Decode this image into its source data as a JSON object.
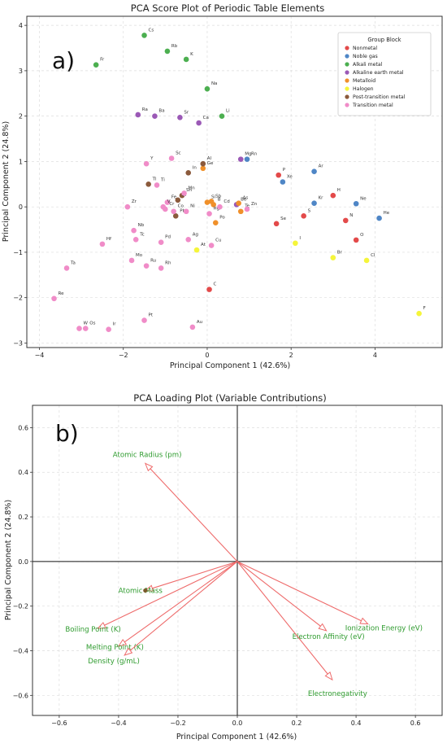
{
  "panel_labels": [
    "a)",
    "b)"
  ],
  "colors": {
    "Nonmetal": "#e34a4a",
    "Noble gas": "#4f86c6",
    "Alkali metal": "#4caf50",
    "Alkaline earth metal": "#9b59b6",
    "Metalloid": "#f0902a",
    "Halogen": "#f5f53a",
    "Post-transition metal": "#8b5a3c",
    "Transition metal": "#f08cc8",
    "loading_arrow": "#ee6b6b",
    "loading_label": "#2e9b2e"
  },
  "chart_data": [
    {
      "type": "scatter",
      "title": "PCA Score Plot of Periodic Table Elements",
      "xlabel": "Principal Component 1 (42.6%)",
      "ylabel": "Principal Component 2 (24.8%)",
      "xlim": [
        -4.3,
        5.6
      ],
      "ylim": [
        -3.1,
        4.2
      ],
      "xticks": [
        -4,
        -2,
        0,
        2,
        4
      ],
      "yticks": [
        -3,
        -2,
        -1,
        0,
        1,
        2,
        3,
        4
      ],
      "grid": true,
      "legend": {
        "title": "Group Block",
        "position": "top-right",
        "entries": [
          "Nonmetal",
          "Noble gas",
          "Alkali metal",
          "Alkaline earth metal",
          "Metalloid",
          "Halogen",
          "Post-transition metal",
          "Transition metal"
        ]
      },
      "points": [
        {
          "label": "Cs",
          "x": -1.5,
          "y": 3.78,
          "group": "Alkali metal"
        },
        {
          "label": "Rb",
          "x": -0.95,
          "y": 3.43,
          "group": "Alkali metal"
        },
        {
          "label": "K",
          "x": -0.5,
          "y": 3.25,
          "group": "Alkali metal"
        },
        {
          "label": "Fr",
          "x": -2.65,
          "y": 3.13,
          "group": "Alkali metal"
        },
        {
          "label": "Na",
          "x": 0.0,
          "y": 2.6,
          "group": "Alkali metal"
        },
        {
          "label": "Li",
          "x": 0.35,
          "y": 2.0,
          "group": "Alkali metal"
        },
        {
          "label": "Ra",
          "x": -1.65,
          "y": 2.03,
          "group": "Alkaline earth metal"
        },
        {
          "label": "Ba",
          "x": -1.25,
          "y": 2.0,
          "group": "Alkaline earth metal"
        },
        {
          "label": "Sr",
          "x": -0.65,
          "y": 1.97,
          "group": "Alkaline earth metal"
        },
        {
          "label": "Ca",
          "x": -0.2,
          "y": 1.85,
          "group": "Alkaline earth metal"
        },
        {
          "label": "Mg",
          "x": 0.8,
          "y": 1.05,
          "group": "Alkaline earth metal"
        },
        {
          "label": "Be",
          "x": 0.7,
          "y": 0.05,
          "group": "Alkaline earth metal"
        },
        {
          "label": "Rn",
          "x": 0.95,
          "y": 1.05,
          "group": "Noble gas"
        },
        {
          "label": "Xe",
          "x": 1.8,
          "y": 0.55,
          "group": "Noble gas"
        },
        {
          "label": "Ar",
          "x": 2.55,
          "y": 0.78,
          "group": "Noble gas"
        },
        {
          "label": "Kr",
          "x": 2.55,
          "y": 0.08,
          "group": "Noble gas"
        },
        {
          "label": "Ne",
          "x": 3.55,
          "y": 0.07,
          "group": "Noble gas"
        },
        {
          "label": "He",
          "x": 4.1,
          "y": -0.25,
          "group": "Noble gas"
        },
        {
          "label": "P",
          "x": 1.7,
          "y": 0.7,
          "group": "Nonmetal"
        },
        {
          "label": "H",
          "x": 3.0,
          "y": 0.25,
          "group": "Nonmetal"
        },
        {
          "label": "S",
          "x": 2.3,
          "y": -0.2,
          "group": "Nonmetal"
        },
        {
          "label": "Se",
          "x": 1.65,
          "y": -0.37,
          "group": "Nonmetal"
        },
        {
          "label": "N",
          "x": 3.3,
          "y": -0.3,
          "group": "Nonmetal"
        },
        {
          "label": "O",
          "x": 3.55,
          "y": -0.73,
          "group": "Nonmetal"
        },
        {
          "label": "C",
          "x": 0.05,
          "y": -1.82,
          "group": "Nonmetal"
        },
        {
          "label": "I",
          "x": 2.1,
          "y": -0.8,
          "group": "Halogen"
        },
        {
          "label": "Br",
          "x": 3.0,
          "y": -1.12,
          "group": "Halogen"
        },
        {
          "label": "Cl",
          "x": 3.8,
          "y": -1.18,
          "group": "Halogen"
        },
        {
          "label": "F",
          "x": 5.05,
          "y": -2.35,
          "group": "Halogen"
        },
        {
          "label": "At",
          "x": -0.25,
          "y": -0.95,
          "group": "Halogen"
        },
        {
          "label": "Ge",
          "x": -0.1,
          "y": 0.85,
          "group": "Metalloid"
        },
        {
          "label": "Si",
          "x": 0.0,
          "y": 0.1,
          "group": "Metalloid"
        },
        {
          "label": "Sb",
          "x": 0.1,
          "y": 0.12,
          "group": "Metalloid"
        },
        {
          "label": "B",
          "x": 0.15,
          "y": 0.05,
          "group": "Metalloid"
        },
        {
          "label": "As",
          "x": 0.75,
          "y": 0.08,
          "group": "Metalloid"
        },
        {
          "label": "Te",
          "x": 0.8,
          "y": -0.1,
          "group": "Metalloid"
        },
        {
          "label": "Po",
          "x": 0.2,
          "y": -0.35,
          "group": "Metalloid"
        },
        {
          "label": "Al",
          "x": -0.1,
          "y": 0.95,
          "group": "Post-transition metal"
        },
        {
          "label": "In",
          "x": -0.45,
          "y": 0.75,
          "group": "Post-transition metal"
        },
        {
          "label": "Tl",
          "x": -1.4,
          "y": 0.5,
          "group": "Post-transition metal"
        },
        {
          "label": "Sn",
          "x": -0.6,
          "y": 0.25,
          "group": "Post-transition metal"
        },
        {
          "label": "Bi",
          "x": -0.7,
          "y": 0.15,
          "group": "Post-transition metal"
        },
        {
          "label": "Pb",
          "x": -0.75,
          "y": -0.2,
          "group": "Post-transition metal"
        },
        {
          "label": "Y",
          "x": -1.45,
          "y": 0.95,
          "group": "Transition metal"
        },
        {
          "label": "Sc",
          "x": -0.85,
          "y": 1.07,
          "group": "Transition metal"
        },
        {
          "label": "Ti",
          "x": -1.2,
          "y": 0.48,
          "group": "Transition metal"
        },
        {
          "label": "Zr",
          "x": -1.9,
          "y": 0.0,
          "group": "Transition metal"
        },
        {
          "label": "Mn",
          "x": -0.55,
          "y": 0.3,
          "group": "Transition metal"
        },
        {
          "label": "Fe",
          "x": -0.95,
          "y": 0.1,
          "group": "Transition metal"
        },
        {
          "label": "V",
          "x": -1.05,
          "y": 0.0,
          "group": "Transition metal"
        },
        {
          "label": "Co",
          "x": -0.8,
          "y": -0.1,
          "group": "Transition metal"
        },
        {
          "label": "Ni",
          "x": -0.5,
          "y": -0.1,
          "group": "Transition metal"
        },
        {
          "label": "Cr",
          "x": -1.0,
          "y": -0.05,
          "group": "Transition metal"
        },
        {
          "label": "Hg",
          "x": 0.05,
          "y": -0.15,
          "group": "Transition metal"
        },
        {
          "label": "Cd",
          "x": 0.3,
          "y": 0.0,
          "group": "Transition metal"
        },
        {
          "label": "Zn",
          "x": 0.95,
          "y": -0.05,
          "group": "Transition metal"
        },
        {
          "label": "Nb",
          "x": -1.75,
          "y": -0.52,
          "group": "Transition metal"
        },
        {
          "label": "Tc",
          "x": -1.7,
          "y": -0.72,
          "group": "Transition metal"
        },
        {
          "label": "Hf",
          "x": -2.5,
          "y": -0.82,
          "group": "Transition metal"
        },
        {
          "label": "Pd",
          "x": -1.1,
          "y": -0.78,
          "group": "Transition metal"
        },
        {
          "label": "Ag",
          "x": -0.45,
          "y": -0.72,
          "group": "Transition metal"
        },
        {
          "label": "Cu",
          "x": 0.1,
          "y": -0.85,
          "group": "Transition metal"
        },
        {
          "label": "Mo",
          "x": -1.8,
          "y": -1.18,
          "group": "Transition metal"
        },
        {
          "label": "Ru",
          "x": -1.45,
          "y": -1.3,
          "group": "Transition metal"
        },
        {
          "label": "Rh",
          "x": -1.1,
          "y": -1.35,
          "group": "Transition metal"
        },
        {
          "label": "Ta",
          "x": -3.35,
          "y": -1.35,
          "group": "Transition metal"
        },
        {
          "label": "Re",
          "x": -3.65,
          "y": -2.02,
          "group": "Transition metal"
        },
        {
          "label": "Pt",
          "x": -1.5,
          "y": -2.5,
          "group": "Transition metal"
        },
        {
          "label": "Au",
          "x": -0.35,
          "y": -2.65,
          "group": "Transition metal"
        },
        {
          "label": "W",
          "x": -3.05,
          "y": -2.68,
          "group": "Transition metal"
        },
        {
          "label": "Os",
          "x": -2.9,
          "y": -2.68,
          "group": "Transition metal"
        },
        {
          "label": "Ir",
          "x": -2.35,
          "y": -2.7,
          "group": "Transition metal"
        }
      ]
    },
    {
      "type": "vector",
      "title": "PCA Loading Plot (Variable Contributions)",
      "xlabel": "Principal Component 1 (42.6%)",
      "ylabel": "Principal Component 2 (24.8%)",
      "xlim": [
        -0.69,
        0.69
      ],
      "ylim": [
        -0.69,
        0.7
      ],
      "xticks": [
        -0.6,
        -0.4,
        -0.2,
        0.0,
        0.2,
        0.4,
        0.6
      ],
      "yticks": [
        -0.6,
        -0.4,
        -0.2,
        0.0,
        0.2,
        0.4,
        0.6
      ],
      "tick_labels_x": [
        "-0.6",
        "-0.4",
        "-0.2",
        "0.0",
        "0.2",
        "0.4",
        "0.6"
      ],
      "tick_labels_y": [
        "-0.6",
        "-0.4",
        "-0.2",
        "0.0",
        "0.2",
        "0.4",
        "0.6"
      ],
      "grid": true,
      "vectors": [
        {
          "label": "Atomic Radius (pm)",
          "x": -0.31,
          "y": 0.44
        },
        {
          "label": "Atomic Mass",
          "x": -0.31,
          "y": -0.13
        },
        {
          "label": "Boiling Point (K)",
          "x": -0.47,
          "y": -0.3
        },
        {
          "label": "Melting Point (K)",
          "x": -0.4,
          "y": -0.38
        },
        {
          "label": "Density (g/mL)",
          "x": -0.38,
          "y": -0.42
        },
        {
          "label": "Ionization Energy (eV)",
          "x": 0.44,
          "y": -0.28
        },
        {
          "label": "Electron Affinity (eV)",
          "x": 0.3,
          "y": -0.31
        },
        {
          "label": "Electronegativity",
          "x": 0.32,
          "y": -0.53
        }
      ]
    }
  ]
}
